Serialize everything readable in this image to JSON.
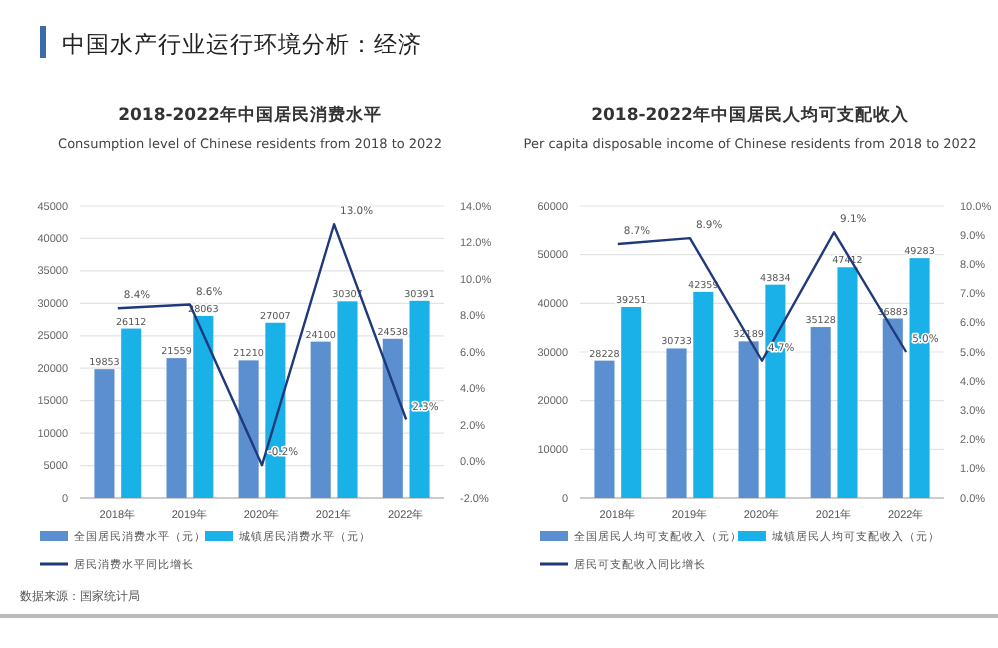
{
  "chart_data": [
    {
      "type": "bar",
      "title": "2018-2022年中国居民消费水平",
      "subtitle": "Consumption level of Chinese residents from 2018 to 2022",
      "annotations": [
        "中国水产行业运行环境分析：经济"
      ],
      "categories": [
        "2018年",
        "2019年",
        "2020年",
        "2021年",
        "2022年"
      ],
      "series": [
        {
          "name": "全国居民消费水平（元）",
          "color": "#5b8fd0",
          "values": [
            19853,
            21559,
            21210,
            24100,
            24538
          ],
          "value_labels": [
            "19853",
            "21559",
            "21210",
            "24100",
            "24538"
          ]
        },
        {
          "name": "城镇居民消费水平（元）",
          "color": "#1ab0e8",
          "values": [
            26112,
            28063,
            27007,
            30307,
            30391
          ],
          "value_labels": [
            "26112",
            "28063",
            "27007",
            "30307",
            "30391"
          ]
        },
        {
          "name": "居民消费水平同比增长",
          "type": "line",
          "axis": "y2",
          "color": "#1f3a7a",
          "values": [
            8.4,
            8.6,
            -0.2,
            13.0,
            2.3
          ],
          "value_labels": [
            "8.4%",
            "8.6%",
            "-0.2%",
            "13.0%",
            "2.3%"
          ]
        }
      ],
      "ylim": [
        0,
        45000
      ],
      "yticks": [
        0,
        5000,
        10000,
        15000,
        20000,
        25000,
        30000,
        35000,
        40000,
        45000
      ],
      "y2lim": [
        -2,
        14
      ],
      "y2ticks": [
        {
          "value": -2,
          "label": "-2.0%"
        },
        {
          "value": 0,
          "label": "0.0%"
        },
        {
          "value": 2,
          "label": "2.0%"
        },
        {
          "value": 4,
          "label": "4.0%"
        },
        {
          "value": 6,
          "label": "6.0%"
        },
        {
          "value": 8,
          "label": "8.0%"
        },
        {
          "value": 10,
          "label": "10.0%"
        },
        {
          "value": 12,
          "label": "12.0%"
        },
        {
          "value": 14,
          "label": "14.0%"
        }
      ],
      "grid": "y",
      "legend": "bottom"
    },
    {
      "type": "bar",
      "title": "2018-2022年中国居民人均可支配收入",
      "subtitle": "Per capita disposable income of Chinese residents from 2018 to 2022",
      "annotations": [
        "数据来源：国家统计局"
      ],
      "categories": [
        "2018年",
        "2019年",
        "2020年",
        "2021年",
        "2022年"
      ],
      "series": [
        {
          "name": "全国居民人均可支配收入（元）",
          "color": "#5b8fd0",
          "values": [
            28228,
            30733,
            32189,
            35128,
            36883
          ],
          "value_labels": [
            "28228",
            "30733",
            "32189",
            "35128",
            "36883"
          ]
        },
        {
          "name": "城镇居民人均可支配收入（元）",
          "color": "#1ab0e8",
          "values": [
            39251,
            42359,
            43834,
            47412,
            49283
          ],
          "value_labels": [
            "39251",
            "42359",
            "43834",
            "47412",
            "49283"
          ]
        },
        {
          "name": "居民可支配收入同比增长",
          "type": "line",
          "axis": "y2",
          "color": "#1f3a7a",
          "values": [
            8.7,
            8.9,
            4.7,
            9.1,
            5.0
          ],
          "value_labels": [
            "8.7%",
            "8.9%",
            "4.7%",
            "9.1%",
            "5.0%"
          ]
        }
      ],
      "ylim": [
        0,
        60000
      ],
      "yticks": [
        0,
        10000,
        20000,
        30000,
        40000,
        50000,
        60000
      ],
      "y2lim": [
        0,
        10
      ],
      "y2ticks": [
        {
          "value": 0,
          "label": "0.0%"
        },
        {
          "value": 1,
          "label": "1.0%"
        },
        {
          "value": 2,
          "label": "2.0%"
        },
        {
          "value": 3,
          "label": "3.0%"
        },
        {
          "value": 4,
          "label": "4.0%"
        },
        {
          "value": 5,
          "label": "5.0%"
        },
        {
          "value": 6,
          "label": "6.0%"
        },
        {
          "value": 7,
          "label": "7.0%"
        },
        {
          "value": 8,
          "label": "8.0%"
        },
        {
          "value": 9,
          "label": "9.0%"
        },
        {
          "value": 10,
          "label": "10.0%"
        }
      ],
      "grid": "y",
      "legend": "bottom"
    }
  ]
}
